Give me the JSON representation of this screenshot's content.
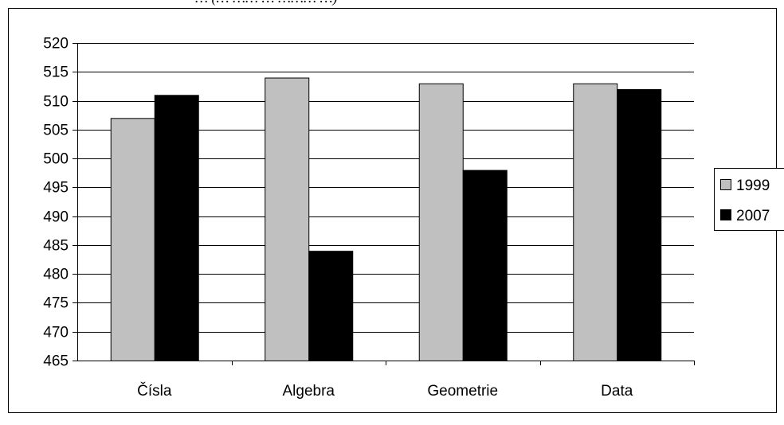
{
  "header_fragment": "… (… …… … ……… …)",
  "chart_data": {
    "type": "bar",
    "categories": [
      "Čísla",
      "Algebra",
      "Geometrie",
      "Data"
    ],
    "series": [
      {
        "name": "1999",
        "values": [
          507,
          514,
          513,
          513
        ],
        "color": "#c0c0c0"
      },
      {
        "name": "2007",
        "values": [
          511,
          484,
          498,
          512
        ],
        "color": "#000000"
      }
    ],
    "ylim": [
      465,
      520
    ],
    "ytick_step": 5,
    "ytick_labels": [
      "465",
      "470",
      "475",
      "480",
      "485",
      "490",
      "495",
      "500",
      "505",
      "510",
      "515",
      "520"
    ],
    "grid": true,
    "legend_position": "right",
    "title": "",
    "xlabel": "",
    "ylabel": ""
  }
}
